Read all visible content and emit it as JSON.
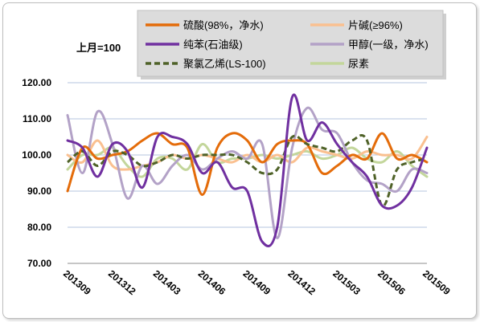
{
  "chart_data": {
    "type": "line",
    "unit_label": "上月=100",
    "ylim": [
      70,
      120
    ],
    "y_ticks": [
      "70.00",
      "80.00",
      "90.00",
      "100.00",
      "110.00",
      "120.00"
    ],
    "grid": true,
    "legend_position": "top",
    "x_labels": [
      "201309",
      "201312",
      "201403",
      "201406",
      "201409",
      "201412",
      "201503",
      "201506",
      "201509"
    ],
    "x_count": 25,
    "series": [
      {
        "name": "硫酸(98%，净水)",
        "color": "#e46c0a",
        "dash": false,
        "values": [
          90,
          102,
          99,
          100,
          101,
          104,
          106,
          103,
          102,
          89,
          102,
          106,
          104,
          98,
          103,
          104,
          103,
          95,
          97,
          100,
          99,
          106,
          99,
          100,
          98
        ]
      },
      {
        "name": "片碱(≥96%)",
        "color": "#fac090",
        "dash": false,
        "values": [
          100,
          98,
          104,
          97,
          96,
          97,
          98,
          100,
          99,
          100,
          99,
          98,
          100,
          98,
          100,
          98,
          102,
          101,
          100,
          99,
          101,
          100,
          100,
          99,
          105
        ]
      },
      {
        "name": "纯苯(石油级)",
        "color": "#7030a0",
        "dash": false,
        "values": [
          104,
          102,
          94,
          103,
          101,
          91,
          105,
          105,
          103,
          95,
          98,
          91,
          90,
          76,
          80,
          116,
          104,
          109,
          103,
          98,
          94,
          86,
          86,
          91,
          102
        ]
      },
      {
        "name": "甲醇(一级，净水)",
        "color": "#b3a2c7",
        "dash": false,
        "values": [
          111,
          95,
          112,
          103,
          88,
          97,
          92,
          97,
          100,
          96,
          99,
          101,
          99,
          103,
          77,
          102,
          113,
          107,
          106,
          98,
          93,
          92,
          90,
          96,
          95
        ]
      },
      {
        "name": "聚氯乙烯(LS-100)",
        "color": "#4f6228",
        "dash": true,
        "values": [
          98,
          101,
          97,
          101,
          100,
          97,
          98,
          100,
          99,
          100,
          100,
          100,
          98,
          95,
          96,
          105,
          103,
          102,
          101,
          104,
          104,
          86,
          96,
          98,
          99
        ]
      },
      {
        "name": "尿素",
        "color": "#c3d69b",
        "dash": false,
        "values": [
          96,
          100,
          100,
          102,
          97,
          94,
          99,
          99,
          96,
          103,
          98,
          99,
          99,
          100,
          99,
          100,
          101,
          99,
          100,
          102,
          99,
          98,
          101,
          97,
          94
        ]
      }
    ]
  }
}
